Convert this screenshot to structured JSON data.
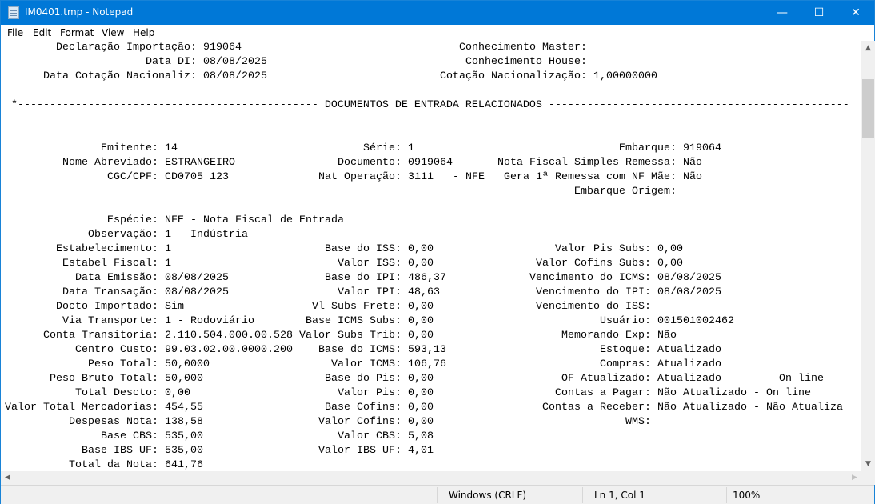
{
  "window": {
    "title": "IM0401.tmp - Notepad",
    "accent": "#0078d7"
  },
  "controls": {
    "minimize": "—",
    "maximize": "☐",
    "close": "✕"
  },
  "menu": [
    "File",
    "Edit",
    "Format",
    "View",
    "Help"
  ],
  "header": [
    [
      {
        "label": "Declaração Importação:",
        "value": "919064"
      },
      {
        "label": "Conhecimento Master:",
        "value": ""
      }
    ],
    [
      {
        "label": "Data DI:",
        "value": "08/08/2025"
      },
      {
        "label": "Conhecimento House:",
        "value": ""
      }
    ],
    [
      {
        "label": "Data Cotação Nacionaliz:",
        "value": "08/08/2025"
      },
      {
        "label": "Cotação Nacionalização:",
        "value": "1,00000000"
      }
    ]
  ],
  "separator": " *----------------------------------------------- DOCUMENTOS DE ENTRADA RELACIONADOS -----------------------------------------------",
  "documento": [
    [
      {
        "label": "Emitente:",
        "value": "14"
      },
      {
        "label": "Série:",
        "value": "1"
      },
      {
        "label": "Embarque:",
        "value": "919064"
      }
    ],
    [
      {
        "label": "Nome Abreviado:",
        "value": "ESTRANGEIRO"
      },
      {
        "label": "Documento:",
        "value": "0919064"
      },
      {
        "label": "Nota Fiscal Simples Remessa:",
        "value": "Não"
      }
    ],
    [
      {
        "label": "CGC/CPF:",
        "value": "CD0705 123"
      },
      {
        "label": "Nat Operação:",
        "value": "3111   - NFE"
      },
      {
        "label": "Gera 1ª Remessa com NF Mãe:",
        "value": "Não"
      }
    ],
    [
      null,
      null,
      {
        "label": "Embarque Origem:",
        "value": ""
      }
    ]
  ],
  "body": [
    [
      {
        "label": "Espécie:",
        "value": "NFE - Nota Fiscal de Entrada"
      },
      null,
      null
    ],
    [
      {
        "label": "Observação:",
        "value": "1 - Indústria"
      },
      null,
      null
    ],
    [
      {
        "label": "Estabelecimento:",
        "value": "1"
      },
      {
        "label": "Base do ISS:",
        "value": "0,00"
      },
      {
        "label": "Valor Pis Subs:",
        "value": "0,00"
      }
    ],
    [
      {
        "label": "Estabel Fiscal:",
        "value": "1"
      },
      {
        "label": "Valor ISS:",
        "value": "0,00"
      },
      {
        "label": "Valor Cofins Subs:",
        "value": "0,00"
      }
    ],
    [
      {
        "label": "Data Emissão:",
        "value": "08/08/2025"
      },
      {
        "label": "Base do IPI:",
        "value": "486,37"
      },
      {
        "label": "Vencimento do ICMS:",
        "value": "08/08/2025"
      }
    ],
    [
      {
        "label": "Data Transação:",
        "value": "08/08/2025"
      },
      {
        "label": "Valor IPI:",
        "value": "48,63"
      },
      {
        "label": "Vencimento do IPI:",
        "value": "08/08/2025"
      }
    ],
    [
      {
        "label": "Docto Importado:",
        "value": "Sim"
      },
      {
        "label": "Vl Subs Frete:",
        "value": "0,00"
      },
      {
        "label": "Vencimento do ISS:",
        "value": ""
      }
    ],
    [
      {
        "label": "Via Transporte:",
        "value": "1 - Rodoviário"
      },
      {
        "label": "Base ICMS Subs:",
        "value": "0,00"
      },
      {
        "label": "Usuário:",
        "value": "001501002462"
      }
    ],
    [
      {
        "label": "Conta Transitoria:",
        "value": "2.110.504.000.00.528"
      },
      {
        "label": "Valor Subs Trib:",
        "value": "0,00"
      },
      {
        "label": "Memorando Exp:",
        "value": "Não"
      }
    ],
    [
      {
        "label": "Centro Custo:",
        "value": "99.03.02.00.0000.200"
      },
      {
        "label": "Base do ICMS:",
        "value": "593,13"
      },
      {
        "label": "Estoque:",
        "value": "Atualizado"
      }
    ],
    [
      {
        "label": "Peso Total:",
        "value": "50,0000"
      },
      {
        "label": "Valor ICMS:",
        "value": "106,76"
      },
      {
        "label": "Compras:",
        "value": "Atualizado"
      }
    ],
    [
      {
        "label": "Peso Bruto Total:",
        "value": "50,000"
      },
      {
        "label": "Base do Pis:",
        "value": "0,00"
      },
      {
        "label": "OF Atualizado:",
        "value": "Atualizado       - On line"
      }
    ],
    [
      {
        "label": "Total Descto:",
        "value": "0,00"
      },
      {
        "label": "Valor Pis:",
        "value": "0,00"
      },
      {
        "label": "Contas a Pagar:",
        "value": "Não Atualizado - On line"
      }
    ],
    [
      {
        "label": "Valor Total Mercadorias:",
        "value": "454,55"
      },
      {
        "label": "Base Cofins:",
        "value": "0,00"
      },
      {
        "label": "Contas a Receber:",
        "value": "Não Atualizado - Não Atualiza"
      }
    ],
    [
      {
        "label": "Despesas Nota:",
        "value": "138,58"
      },
      {
        "label": "Valor Cofins:",
        "value": "0,00"
      },
      {
        "label": "WMS:",
        "value": ""
      }
    ],
    [
      {
        "label": "Base CBS:",
        "value": "535,00"
      },
      {
        "label": "Valor CBS:",
        "value": "5,08"
      },
      null
    ],
    [
      {
        "label": "Base IBS UF:",
        "value": "535,00"
      },
      {
        "label": "Valor IBS UF:",
        "value": "4,01"
      },
      null
    ],
    [
      {
        "label": "Total da Nota:",
        "value": "641,76"
      },
      null,
      null
    ]
  ],
  "status": {
    "line_ending": "Windows (CRLF)",
    "position": "Ln 1, Col 1",
    "zoom": "100%"
  }
}
